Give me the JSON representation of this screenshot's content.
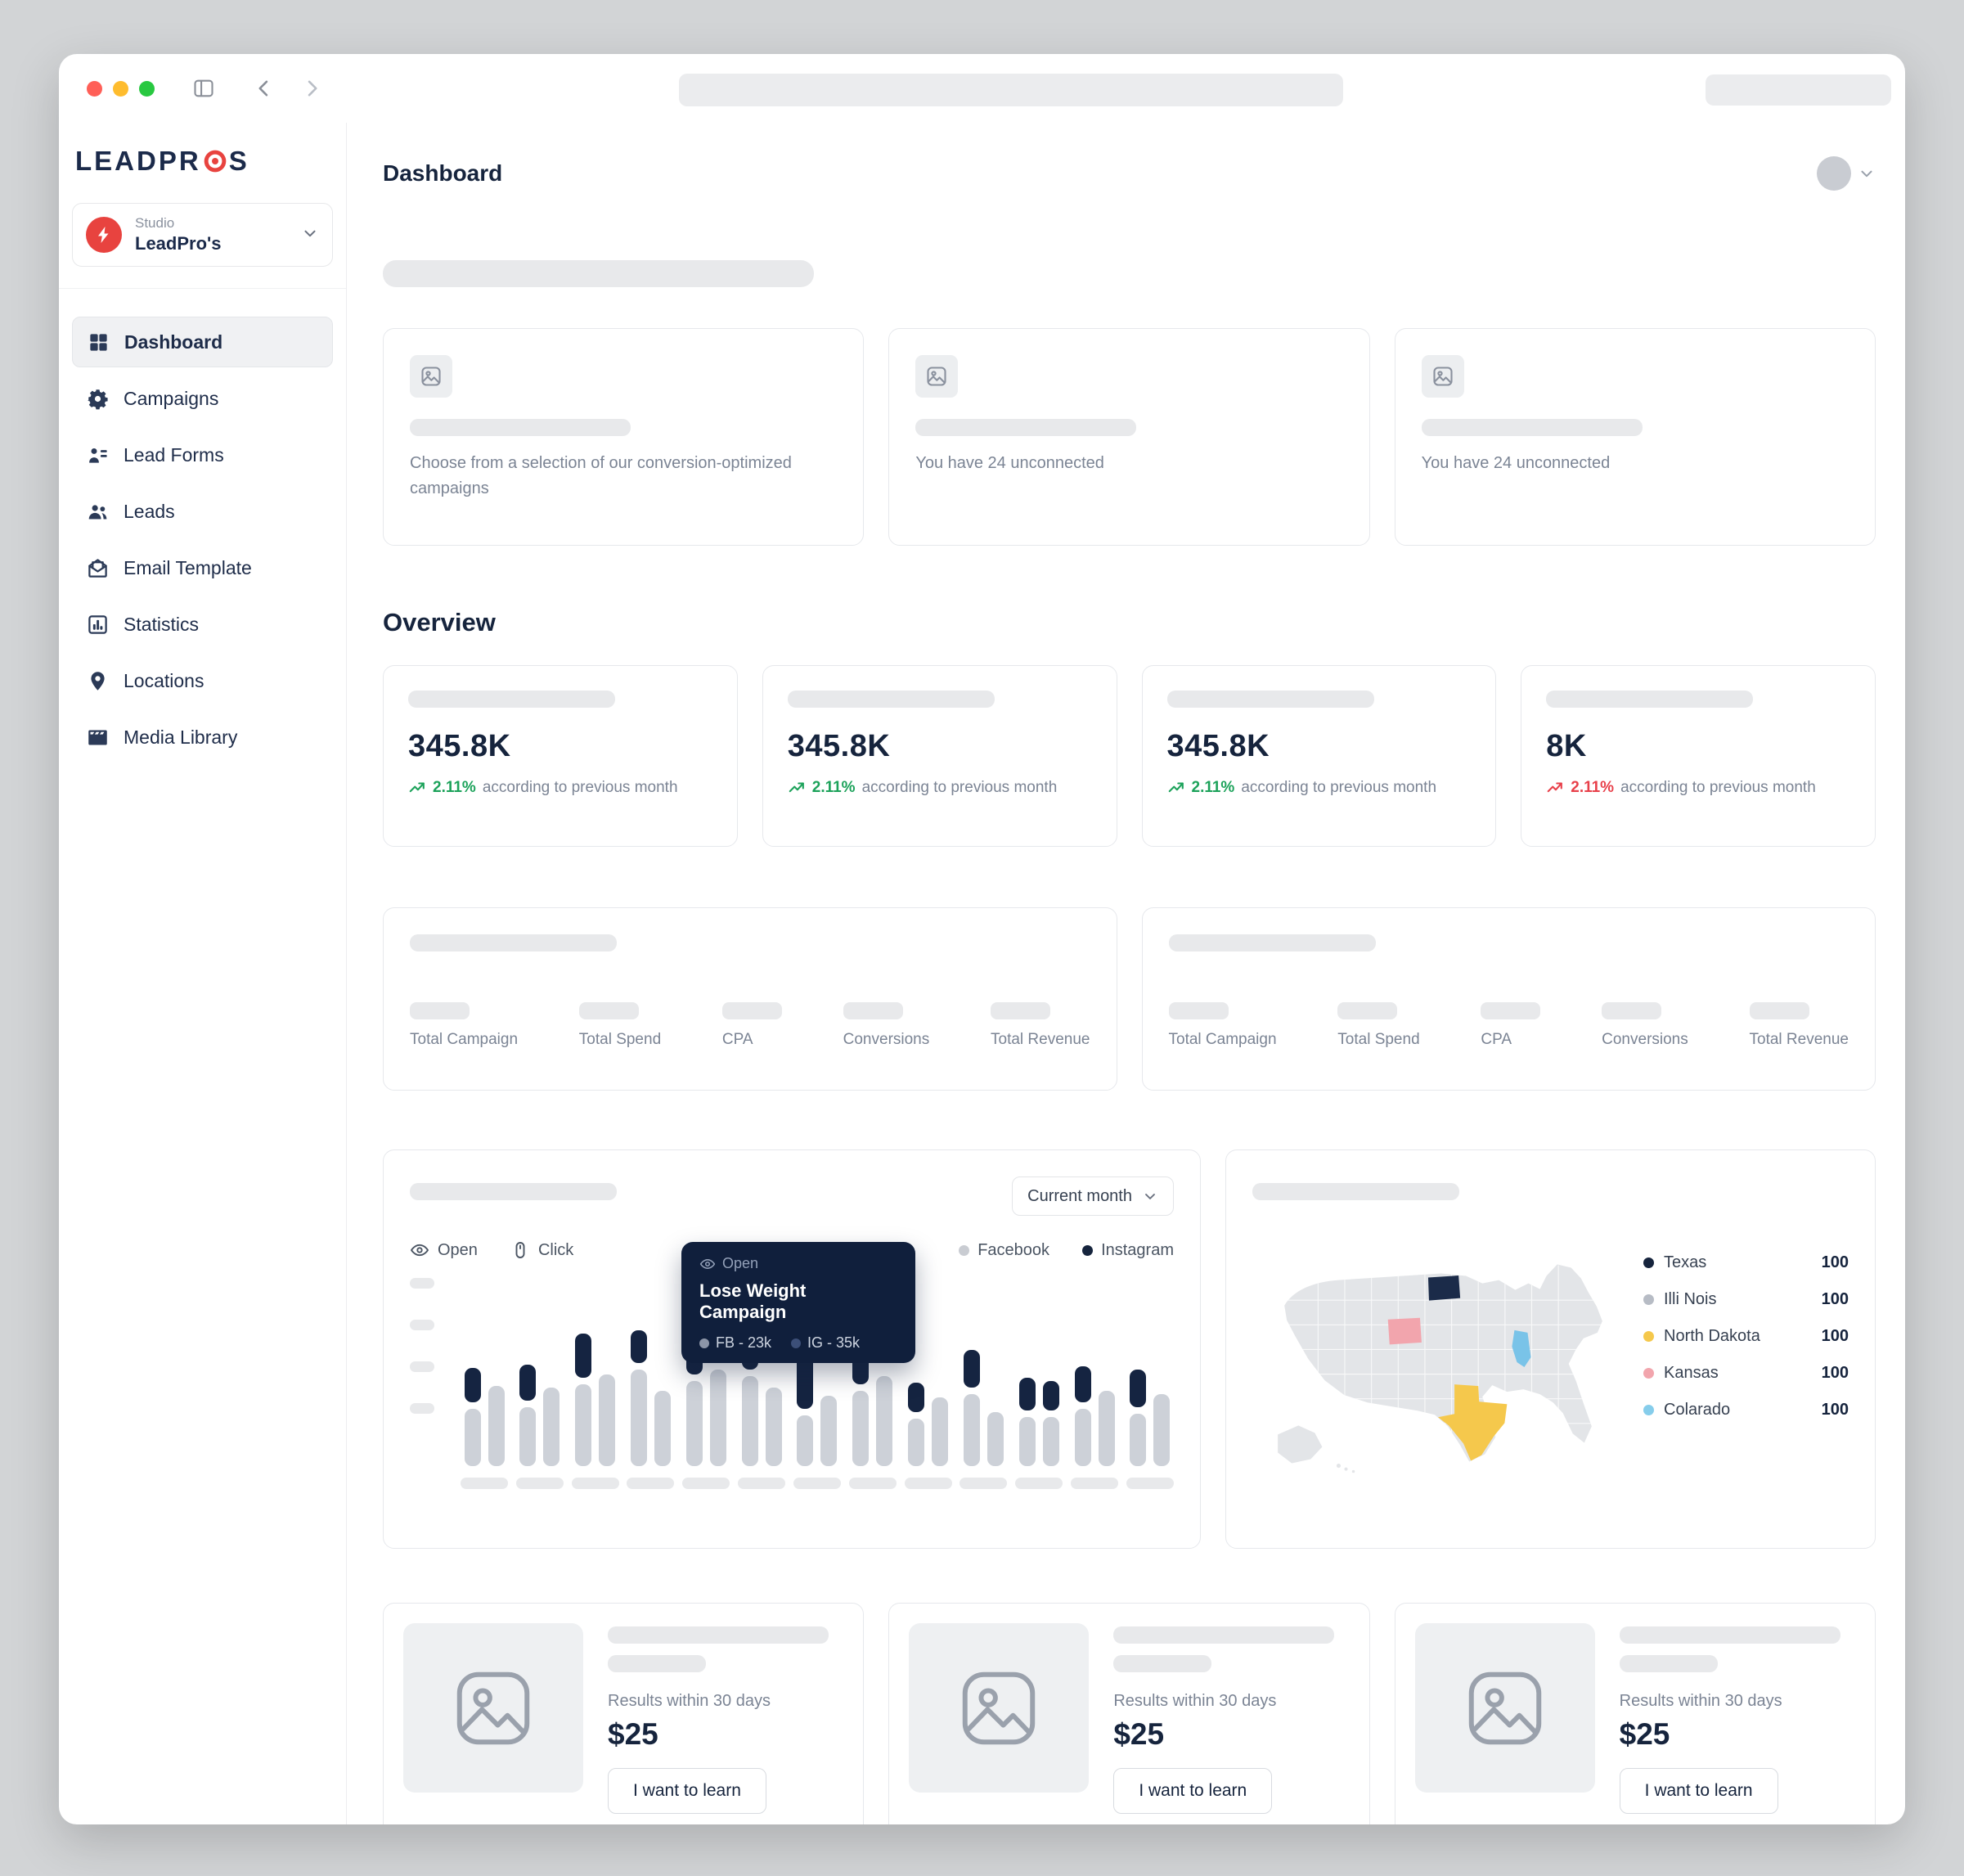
{
  "colors": {
    "accent_red": "#e8433f",
    "navy": "#16243d",
    "green": "#1ca25a",
    "red": "#e8404a"
  },
  "sidebar": {
    "logo_prefix": "LEADPR",
    "logo_suffix": "S",
    "studio_label": "Studio",
    "studio_name": "LeadPro's",
    "items": [
      {
        "label": "Dashboard"
      },
      {
        "label": "Campaigns"
      },
      {
        "label": "Lead Forms"
      },
      {
        "label": "Leads"
      },
      {
        "label": "Email Template"
      },
      {
        "label": "Statistics"
      },
      {
        "label": "Locations"
      },
      {
        "label": "Media Library"
      }
    ]
  },
  "header": {
    "title": "Dashboard"
  },
  "promo_cards": [
    {
      "text": "Choose from a selection of our conversion-optimized campaigns"
    },
    {
      "text": "You have 24 unconnected"
    },
    {
      "text": "You have 24 unconnected"
    }
  ],
  "overview": {
    "heading": "Overview",
    "stats": [
      {
        "value": "345.8K",
        "delta": "2.11%",
        "suffix": "according to previous month",
        "trend": "up"
      },
      {
        "value": "345.8K",
        "delta": "2.11%",
        "suffix": "according to previous month",
        "trend": "up"
      },
      {
        "value": "345.8K",
        "delta": "2.11%",
        "suffix": "according to previous month",
        "trend": "up"
      },
      {
        "value": "8K",
        "delta": "2.11%",
        "suffix": "according to previous month",
        "trend": "down"
      }
    ],
    "metric_labels": [
      "Total Campaign",
      "Total Spend",
      "CPA",
      "Conversions",
      "Total Revenue"
    ]
  },
  "chart_card": {
    "period_dropdown": "Current month",
    "toggles": [
      {
        "label": "Open"
      },
      {
        "label": "Click"
      }
    ],
    "tooltip": {
      "header": "Open",
      "title": "Lose Weight Campaign",
      "fb": "FB - 23k",
      "ig": "IG - 35k"
    }
  },
  "chart_data": {
    "type": "bar",
    "note": "Axis tick labels are redacted placeholder bars in the source UI; bar heights estimated in px from the pixels.",
    "legend_position": "top-right",
    "series": [
      {
        "name": "Facebook",
        "color": "#c9ccd2"
      },
      {
        "name": "Instagram",
        "color": "#16243d"
      }
    ],
    "tooltip_point": {
      "campaign": "Lose Weight Campaign",
      "facebook": "23k",
      "instagram": "35k"
    },
    "groups": [
      {
        "bars": [
          {
            "instagram": 42,
            "facebook": 70
          },
          {
            "instagram": 0,
            "facebook": 98
          }
        ]
      },
      {
        "bars": [
          {
            "instagram": 44,
            "facebook": 72
          },
          {
            "instagram": 0,
            "facebook": 96
          }
        ]
      },
      {
        "bars": [
          {
            "instagram": 54,
            "facebook": 100
          },
          {
            "instagram": 0,
            "facebook": 112
          }
        ]
      },
      {
        "bars": [
          {
            "instagram": 40,
            "facebook": 118
          },
          {
            "instagram": 0,
            "facebook": 92
          }
        ]
      },
      {
        "bars": [
          {
            "instagram": 56,
            "facebook": 104
          },
          {
            "instagram": 0,
            "facebook": 118
          }
        ]
      },
      {
        "bars": [
          {
            "instagram": 44,
            "facebook": 110
          },
          {
            "instagram": 0,
            "facebook": 96
          }
        ]
      },
      {
        "bars": [
          {
            "instagram": 76,
            "facebook": 62
          },
          {
            "instagram": 0,
            "facebook": 86
          }
        ]
      },
      {
        "bars": [
          {
            "instagram": 40,
            "facebook": 92
          },
          {
            "instagram": 0,
            "facebook": 110
          }
        ]
      },
      {
        "bars": [
          {
            "instagram": 36,
            "facebook": 58
          },
          {
            "instagram": 0,
            "facebook": 84
          }
        ]
      },
      {
        "bars": [
          {
            "instagram": 46,
            "facebook": 88
          },
          {
            "instagram": 0,
            "facebook": 66
          }
        ]
      },
      {
        "bars": [
          {
            "instagram": 40,
            "facebook": 60
          },
          {
            "instagram": 36,
            "facebook": 60
          }
        ]
      },
      {
        "bars": [
          {
            "instagram": 44,
            "facebook": 70
          },
          {
            "instagram": 0,
            "facebook": 92
          }
        ]
      },
      {
        "bars": [
          {
            "instagram": 46,
            "facebook": 64
          },
          {
            "instagram": 0,
            "facebook": 88
          }
        ]
      }
    ]
  },
  "map_card": {
    "states": {
      "north_dakota": "#1b2b49",
      "wyoming": "#f2a5ad",
      "illinois": "#79c3e8",
      "texas": "#f5c84c"
    },
    "legend": [
      {
        "label": "Texas",
        "value": "100",
        "color": "#16243d"
      },
      {
        "label": "Illi Nois",
        "value": "100",
        "color": "#b7bcc5"
      },
      {
        "label": "North Dakota",
        "value": "100",
        "color": "#f5c84c"
      },
      {
        "label": "Kansas",
        "value": "100",
        "color": "#f2a5ad"
      },
      {
        "label": "Colarado",
        "value": "100",
        "color": "#86cdeb"
      }
    ]
  },
  "price_cards": [
    {
      "results": "Results within 30 days",
      "price": "$25",
      "cta": "I want to learn"
    },
    {
      "results": "Results within 30 days",
      "price": "$25",
      "cta": "I want to learn"
    },
    {
      "results": "Results within 30 days",
      "price": "$25",
      "cta": "I want to learn"
    }
  ]
}
